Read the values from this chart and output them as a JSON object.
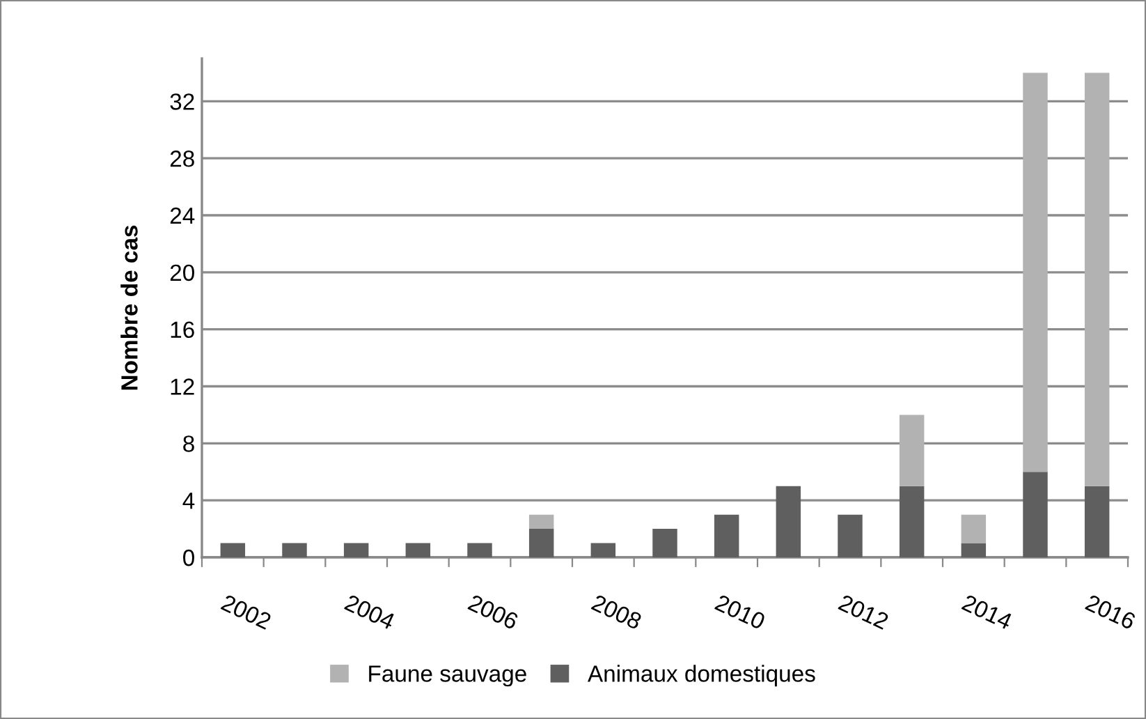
{
  "chart_data": {
    "type": "bar",
    "stacked": true,
    "ylabel": "Nombre de cas",
    "categories": [
      "2002",
      null,
      "2004",
      null,
      "2006",
      null,
      "2008",
      null,
      "2010",
      null,
      "2012",
      null,
      "2014",
      null,
      "2016"
    ],
    "series": [
      {
        "name": "Animaux domestiques",
        "color": "#5f5f5f",
        "values": [
          1,
          1,
          1,
          1,
          1,
          2,
          1,
          2,
          3,
          5,
          3,
          5,
          1,
          6,
          5
        ]
      },
      {
        "name": "Faune sauvage",
        "color": "#b2b2b2",
        "values": [
          0,
          0,
          0,
          0,
          0,
          1,
          0,
          0,
          0,
          0,
          0,
          5,
          2,
          28,
          29
        ]
      }
    ],
    "ylim": [
      0,
      35
    ],
    "yticks": [
      0,
      4,
      8,
      12,
      16,
      20,
      24,
      28,
      32
    ],
    "grid": "y",
    "legend": "bottom"
  }
}
